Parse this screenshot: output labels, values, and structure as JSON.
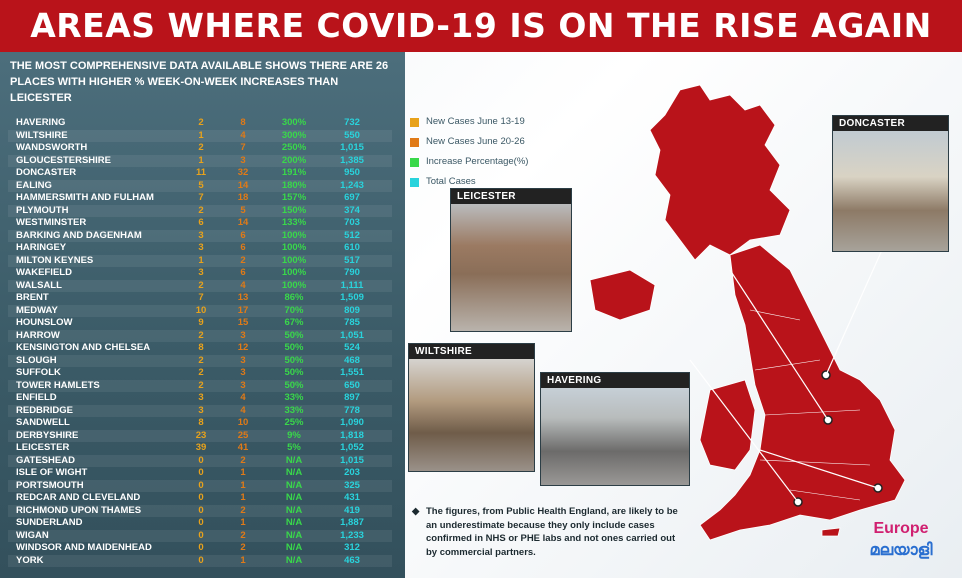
{
  "title": "AREAS WHERE COVID-19 IS ON THE RISE AGAIN",
  "intro": "THE MOST COMPREHENSIVE DATA AVAILABLE SHOWS THERE ARE 26 PLACES WITH HIGHER % WEEK-ON-WEEK INCREASES THAN LEICESTER",
  "legend": [
    {
      "label": "New Cases June 13-19",
      "color": "#e8a21b"
    },
    {
      "label": "New Cases June 20-26",
      "color": "#e07a17"
    },
    {
      "label": "Increase Percentage(%)",
      "color": "#39d84a"
    },
    {
      "label": "Total Cases",
      "color": "#29d3dc"
    }
  ],
  "rows": [
    {
      "place": "HAVERING",
      "june13_19": "2",
      "june20_26": "8",
      "pct": "300%",
      "total": "732"
    },
    {
      "place": "WILTSHIRE",
      "june13_19": "1",
      "june20_26": "4",
      "pct": "300%",
      "total": "550"
    },
    {
      "place": "WANDSWORTH",
      "june13_19": "2",
      "june20_26": "7",
      "pct": "250%",
      "total": "1,015"
    },
    {
      "place": "GLOUCESTERSHIRE",
      "june13_19": "1",
      "june20_26": "3",
      "pct": "200%",
      "total": "1,385"
    },
    {
      "place": "DONCASTER",
      "june13_19": "11",
      "june20_26": "32",
      "pct": "191%",
      "total": "950"
    },
    {
      "place": "EALING",
      "june13_19": "5",
      "june20_26": "14",
      "pct": "180%",
      "total": "1,243"
    },
    {
      "place": "HAMMERSMITH AND FULHAM",
      "june13_19": "7",
      "june20_26": "18",
      "pct": "157%",
      "total": "697"
    },
    {
      "place": "PLYMOUTH",
      "june13_19": "2",
      "june20_26": "5",
      "pct": "150%",
      "total": "374"
    },
    {
      "place": "WESTMINSTER",
      "june13_19": "6",
      "june20_26": "14",
      "pct": "133%",
      "total": "703"
    },
    {
      "place": "BARKING AND DAGENHAM",
      "june13_19": "3",
      "june20_26": "6",
      "pct": "100%",
      "total": "512"
    },
    {
      "place": "HARINGEY",
      "june13_19": "3",
      "june20_26": "6",
      "pct": "100%",
      "total": "610"
    },
    {
      "place": "MILTON KEYNES",
      "june13_19": "1",
      "june20_26": "2",
      "pct": "100%",
      "total": "517"
    },
    {
      "place": "WAKEFIELD",
      "june13_19": "3",
      "june20_26": "6",
      "pct": "100%",
      "total": "790"
    },
    {
      "place": "WALSALL",
      "june13_19": "2",
      "june20_26": "4",
      "pct": "100%",
      "total": "1,111"
    },
    {
      "place": "BRENT",
      "june13_19": "7",
      "june20_26": "13",
      "pct": "86%",
      "total": "1,509"
    },
    {
      "place": "MEDWAY",
      "june13_19": "10",
      "june20_26": "17",
      "pct": "70%",
      "total": "809"
    },
    {
      "place": "HOUNSLOW",
      "june13_19": "9",
      "june20_26": "15",
      "pct": "67%",
      "total": "785"
    },
    {
      "place": "HARROW",
      "june13_19": "2",
      "june20_26": "3",
      "pct": "50%",
      "total": "1,051"
    },
    {
      "place": "KENSINGTON AND CHELSEA",
      "june13_19": "8",
      "june20_26": "12",
      "pct": "50%",
      "total": "524"
    },
    {
      "place": "SLOUGH",
      "june13_19": "2",
      "june20_26": "3",
      "pct": "50%",
      "total": "468"
    },
    {
      "place": "SUFFOLK",
      "june13_19": "2",
      "june20_26": "3",
      "pct": "50%",
      "total": "1,551"
    },
    {
      "place": "TOWER HAMLETS",
      "june13_19": "2",
      "june20_26": "3",
      "pct": "50%",
      "total": "650"
    },
    {
      "place": "ENFIELD",
      "june13_19": "3",
      "june20_26": "4",
      "pct": "33%",
      "total": "897"
    },
    {
      "place": "REDBRIDGE",
      "june13_19": "3",
      "june20_26": "4",
      "pct": "33%",
      "total": "778"
    },
    {
      "place": "SANDWELL",
      "june13_19": "8",
      "june20_26": "10",
      "pct": "25%",
      "total": "1,090"
    },
    {
      "place": "DERBYSHIRE",
      "june13_19": "23",
      "june20_26": "25",
      "pct": "9%",
      "total": "1,818"
    },
    {
      "place": "LEICESTER",
      "june13_19": "39",
      "june20_26": "41",
      "pct": "5%",
      "total": "1,052"
    },
    {
      "place": "GATESHEAD",
      "june13_19": "0",
      "june20_26": "2",
      "pct": "N/A",
      "total": "1,015"
    },
    {
      "place": "ISLE OF WIGHT",
      "june13_19": "0",
      "june20_26": "1",
      "pct": "N/A",
      "total": "203"
    },
    {
      "place": "PORTSMOUTH",
      "june13_19": "0",
      "june20_26": "1",
      "pct": "N/A",
      "total": "325"
    },
    {
      "place": "REDCAR AND CLEVELAND",
      "june13_19": "0",
      "june20_26": "1",
      "pct": "N/A",
      "total": "431"
    },
    {
      "place": "RICHMOND UPON THAMES",
      "june13_19": "0",
      "june20_26": "2",
      "pct": "N/A",
      "total": "419"
    },
    {
      "place": "SUNDERLAND",
      "june13_19": "0",
      "june20_26": "1",
      "pct": "N/A",
      "total": "1,887"
    },
    {
      "place": "WIGAN",
      "june13_19": "0",
      "june20_26": "2",
      "pct": "N/A",
      "total": "1,233"
    },
    {
      "place": "WINDSOR AND MAIDENHEAD",
      "june13_19": "0",
      "june20_26": "2",
      "pct": "N/A",
      "total": "312"
    },
    {
      "place": "YORK",
      "june13_19": "0",
      "june20_26": "1",
      "pct": "N/A",
      "total": "463"
    }
  ],
  "photos": {
    "doncaster": "DONCASTER",
    "leicester": "LEICESTER",
    "wiltshire": "WILTSHIRE",
    "havering": "HAVERING"
  },
  "note": "The figures, from Public Health England, are likely to be an underestimate because they only include cases confirmed in NHS or PHE labs and not ones carried out by commercial partners.",
  "logo": {
    "top": "Europe",
    "bottom": "മലയാളി"
  },
  "map_color": "#b9131a"
}
